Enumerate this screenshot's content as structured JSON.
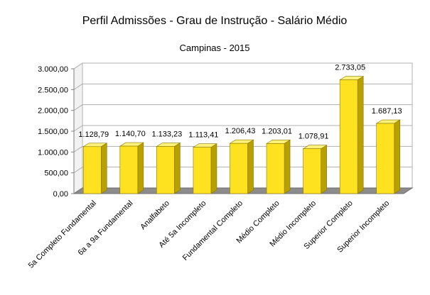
{
  "chart_data": {
    "type": "bar",
    "title": "Perfil Admissões - Grau de Instrução - Salário Médio",
    "subtitle": "Campinas - 2015",
    "xlabel": "",
    "ylabel": "",
    "ylim": [
      0,
      3000
    ],
    "yticks": [
      0,
      500,
      1000,
      1500,
      2000,
      2500,
      3000
    ],
    "ytick_labels": [
      "0,00",
      "500,00",
      "1.000,00",
      "1.500,00",
      "2.000,00",
      "2.500,00",
      "3.000,00"
    ],
    "grid": true,
    "legend": "none",
    "bar_color": "#FFE21F",
    "bar_side_color": "#B8A000",
    "bar_top_color": "#FFF27A",
    "categories": [
      "5a Completo Fundamental",
      "6a a 9a Fundamental",
      "Analfabeto",
      "Até 5a Incompleto",
      "Fundamental Completo",
      "Médio Completo",
      "Médio Incompleto",
      "Superior Completo",
      "Superior Incompleto"
    ],
    "values": [
      1128.79,
      1140.7,
      1133.23,
      1113.41,
      1206.43,
      1203.01,
      1078.91,
      2733.05,
      1687.13
    ],
    "value_labels": [
      "1.128,79",
      "1.140,70",
      "1.133,23",
      "1.113,41",
      "1.206,43",
      "1.203,01",
      "1.078,91",
      "2.733,05",
      "1.687,13"
    ]
  }
}
